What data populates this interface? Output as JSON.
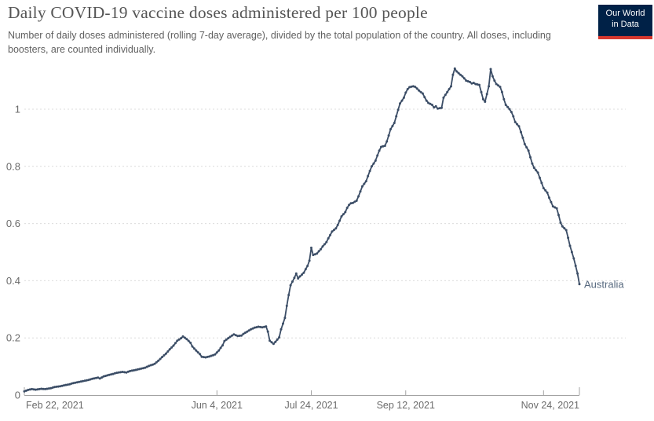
{
  "header": {
    "title": "Daily COVID-19 vaccine doses administered per 100 people",
    "subtitle": "Number of daily doses administered (rolling 7-day average), divided by the total population of the country. All doses, including boosters, are counted individually."
  },
  "logo": {
    "line1": "Our World",
    "line2": "in Data",
    "bg_color": "#002147",
    "accent_color": "#d7382f",
    "text_color": "#ffffff"
  },
  "chart_data": {
    "type": "line",
    "title": "Daily COVID-19 vaccine doses administered per 100 people",
    "xlabel": "",
    "ylabel": "",
    "ylim": [
      0,
      1.17
    ],
    "grid": "dashed-horizontal",
    "legend_position": "end-of-line-label",
    "y_ticks": [
      {
        "label": "0",
        "value": 0
      },
      {
        "label": "0.2",
        "value": 0.2
      },
      {
        "label": "0.4",
        "value": 0.4
      },
      {
        "label": "0.6",
        "value": 0.6
      },
      {
        "label": "0.8",
        "value": 0.8
      },
      {
        "label": "1",
        "value": 1
      }
    ],
    "x_ticks": [
      {
        "label": "Feb 22, 2021",
        "day": 0,
        "align": "start"
      },
      {
        "label": "Jun 4, 2021",
        "day": 102,
        "align": "middle"
      },
      {
        "label": "Jul 24, 2021",
        "day": 152,
        "align": "middle"
      },
      {
        "label": "Sep 12, 2021",
        "day": 202,
        "align": "middle"
      },
      {
        "label": "Nov 24, 2021",
        "day": 275,
        "align": "end"
      }
    ],
    "x_axis_total_days": 294,
    "series": [
      {
        "name": "Australia",
        "color": "#3b4d66",
        "label_color": "#56687e",
        "points": [
          [
            0,
            0.013
          ],
          [
            2,
            0.018
          ],
          [
            4,
            0.021
          ],
          [
            6,
            0.019
          ],
          [
            9,
            0.022
          ],
          [
            11,
            0.021
          ],
          [
            14,
            0.024
          ],
          [
            16,
            0.028
          ],
          [
            19,
            0.031
          ],
          [
            21,
            0.034
          ],
          [
            24,
            0.038
          ],
          [
            26,
            0.042
          ],
          [
            29,
            0.046
          ],
          [
            31,
            0.049
          ],
          [
            34,
            0.053
          ],
          [
            36,
            0.057
          ],
          [
            39,
            0.061
          ],
          [
            40,
            0.058
          ],
          [
            42,
            0.065
          ],
          [
            45,
            0.071
          ],
          [
            47,
            0.074
          ],
          [
            49,
            0.078
          ],
          [
            52,
            0.081
          ],
          [
            54,
            0.079
          ],
          [
            56,
            0.084
          ],
          [
            59,
            0.088
          ],
          [
            61,
            0.091
          ],
          [
            64,
            0.096
          ],
          [
            66,
            0.102
          ],
          [
            69,
            0.109
          ],
          [
            71,
            0.12
          ],
          [
            73,
            0.133
          ],
          [
            75,
            0.145
          ],
          [
            77,
            0.16
          ],
          [
            79,
            0.173
          ],
          [
            81,
            0.19
          ],
          [
            83,
            0.199
          ],
          [
            84,
            0.205
          ],
          [
            86,
            0.196
          ],
          [
            88,
            0.183
          ],
          [
            89,
            0.17
          ],
          [
            91,
            0.156
          ],
          [
            93,
            0.143
          ],
          [
            94,
            0.134
          ],
          [
            96,
            0.132
          ],
          [
            98,
            0.135
          ],
          [
            101,
            0.142
          ],
          [
            103,
            0.156
          ],
          [
            105,
            0.174
          ],
          [
            106,
            0.189
          ],
          [
            108,
            0.199
          ],
          [
            110,
            0.208
          ],
          [
            111,
            0.212
          ],
          [
            113,
            0.207
          ],
          [
            115,
            0.208
          ],
          [
            116,
            0.214
          ],
          [
            118,
            0.222
          ],
          [
            120,
            0.23
          ],
          [
            122,
            0.236
          ],
          [
            124,
            0.239
          ],
          [
            126,
            0.237
          ],
          [
            128,
            0.24
          ],
          [
            129,
            0.222
          ],
          [
            130,
            0.19
          ],
          [
            132,
            0.179
          ],
          [
            133,
            0.186
          ],
          [
            135,
            0.202
          ],
          [
            136,
            0.23
          ],
          [
            138,
            0.27
          ],
          [
            139,
            0.312
          ],
          [
            140,
            0.35
          ],
          [
            141,
            0.384
          ],
          [
            143,
            0.41
          ],
          [
            144,
            0.425
          ],
          [
            145,
            0.408
          ],
          [
            146,
            0.415
          ],
          [
            148,
            0.428
          ],
          [
            149,
            0.44
          ],
          [
            150,
            0.452
          ],
          [
            151,
            0.47
          ],
          [
            152,
            0.515
          ],
          [
            153,
            0.49
          ],
          [
            155,
            0.495
          ],
          [
            156,
            0.503
          ],
          [
            157,
            0.51
          ],
          [
            158,
            0.52
          ],
          [
            160,
            0.535
          ],
          [
            161,
            0.548
          ],
          [
            162,
            0.56
          ],
          [
            163,
            0.572
          ],
          [
            165,
            0.583
          ],
          [
            166,
            0.595
          ],
          [
            167,
            0.61
          ],
          [
            168,
            0.625
          ],
          [
            170,
            0.64
          ],
          [
            171,
            0.655
          ],
          [
            172,
            0.665
          ],
          [
            173,
            0.671
          ],
          [
            174,
            0.672
          ],
          [
            176,
            0.68
          ],
          [
            177,
            0.695
          ],
          [
            178,
            0.712
          ],
          [
            179,
            0.73
          ],
          [
            181,
            0.748
          ],
          [
            182,
            0.766
          ],
          [
            183,
            0.784
          ],
          [
            184,
            0.8
          ],
          [
            186,
            0.82
          ],
          [
            187,
            0.838
          ],
          [
            188,
            0.855
          ],
          [
            189,
            0.868
          ],
          [
            191,
            0.872
          ],
          [
            192,
            0.887
          ],
          [
            193,
            0.908
          ],
          [
            194,
            0.93
          ],
          [
            196,
            0.952
          ],
          [
            197,
            0.975
          ],
          [
            198,
            0.998
          ],
          [
            199,
            1.02
          ],
          [
            201,
            1.04
          ],
          [
            202,
            1.058
          ],
          [
            203,
            1.07
          ],
          [
            204,
            1.077
          ],
          [
            206,
            1.08
          ],
          [
            207,
            1.078
          ],
          [
            208,
            1.072
          ],
          [
            209,
            1.065
          ],
          [
            211,
            1.055
          ],
          [
            212,
            1.042
          ],
          [
            213,
            1.03
          ],
          [
            214,
            1.022
          ],
          [
            216,
            1.015
          ],
          [
            217,
            1.006
          ],
          [
            218,
            1.01
          ],
          [
            219,
            1.002
          ],
          [
            221,
            1.005
          ],
          [
            222,
            1.04
          ],
          [
            223,
            1.05
          ],
          [
            224,
            1.06
          ],
          [
            226,
            1.08
          ],
          [
            227,
            1.12
          ],
          [
            228,
            1.142
          ],
          [
            229,
            1.132
          ],
          [
            231,
            1.12
          ],
          [
            232,
            1.115
          ],
          [
            233,
            1.108
          ],
          [
            234,
            1.1
          ],
          [
            236,
            1.095
          ],
          [
            237,
            1.09
          ],
          [
            238,
            1.092
          ],
          [
            239,
            1.088
          ],
          [
            241,
            1.085
          ],
          [
            242,
            1.06
          ],
          [
            243,
            1.035
          ],
          [
            244,
            1.026
          ],
          [
            246,
            1.08
          ],
          [
            247,
            1.14
          ],
          [
            248,
            1.115
          ],
          [
            249,
            1.1
          ],
          [
            250,
            1.088
          ],
          [
            252,
            1.078
          ],
          [
            253,
            1.06
          ],
          [
            254,
            1.035
          ],
          [
            255,
            1.015
          ],
          [
            257,
            1.0
          ],
          [
            258,
            0.99
          ],
          [
            259,
            0.975
          ],
          [
            260,
            0.955
          ],
          [
            262,
            0.94
          ],
          [
            263,
            0.92
          ],
          [
            264,
            0.9
          ],
          [
            265,
            0.878
          ],
          [
            267,
            0.855
          ],
          [
            268,
            0.832
          ],
          [
            269,
            0.81
          ],
          [
            270,
            0.795
          ],
          [
            272,
            0.778
          ],
          [
            273,
            0.76
          ],
          [
            274,
            0.742
          ],
          [
            275,
            0.724
          ],
          [
            277,
            0.708
          ],
          [
            278,
            0.69
          ],
          [
            279,
            0.675
          ],
          [
            280,
            0.66
          ],
          [
            282,
            0.653
          ],
          [
            283,
            0.63
          ],
          [
            284,
            0.603
          ],
          [
            285,
            0.59
          ],
          [
            287,
            0.577
          ],
          [
            288,
            0.55
          ],
          [
            289,
            0.522
          ],
          [
            290,
            0.5
          ],
          [
            291,
            0.478
          ],
          [
            292,
            0.452
          ],
          [
            293,
            0.425
          ],
          [
            294,
            0.388
          ]
        ]
      }
    ],
    "style": {
      "gridline_color": "#dcdcdc",
      "axis_color": "#a3a3a3",
      "tick_label_color": "#6b6b6b"
    }
  }
}
